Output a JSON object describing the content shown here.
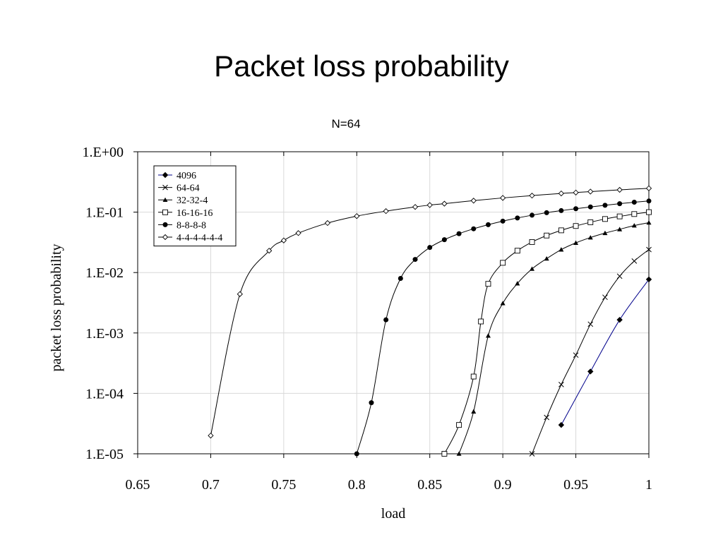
{
  "slide": {
    "title": "Packet loss probability"
  },
  "chart_data": {
    "type": "line",
    "title": "N=64",
    "xlabel": "load",
    "ylabel": "packet loss probability",
    "xlim": [
      0.65,
      1
    ],
    "x_ticks": [
      "0.65",
      "0.7",
      "0.75",
      "0.8",
      "0.85",
      "0.9",
      "0.95",
      "1"
    ],
    "y_log": true,
    "ylim": [
      1e-05,
      1
    ],
    "y_ticks": [
      "1.E+00",
      "1.E-01",
      "1.E-02",
      "1.E-03",
      "1.E-04",
      "1.E-05"
    ],
    "grid": true,
    "legend_position": "top-left",
    "series": [
      {
        "name": "4096",
        "marker": "diamond-filled",
        "color": "#00008b",
        "x": [
          0.94,
          0.96,
          0.98,
          1.0
        ],
        "y": [
          3e-05,
          0.00023,
          0.00165,
          0.0077
        ]
      },
      {
        "name": "64-64",
        "marker": "x",
        "color": "#000000",
        "x": [
          0.92,
          0.93,
          0.94,
          0.95,
          0.96,
          0.97,
          0.98,
          0.99,
          1.0
        ],
        "y": [
          1e-05,
          4e-05,
          0.00014,
          0.00043,
          0.0014,
          0.0039,
          0.0087,
          0.0155,
          0.024
        ]
      },
      {
        "name": "32-32-4",
        "marker": "triangle-filled",
        "color": "#000000",
        "x": [
          0.87,
          0.88,
          0.89,
          0.9,
          0.91,
          0.92,
          0.93,
          0.94,
          0.95,
          0.96,
          0.97,
          0.98,
          0.99,
          1.0
        ],
        "y": [
          1e-05,
          5e-05,
          0.0009,
          0.0031,
          0.0066,
          0.0115,
          0.017,
          0.024,
          0.031,
          0.038,
          0.045,
          0.052,
          0.06,
          0.067
        ]
      },
      {
        "name": "16-16-16",
        "marker": "square-open",
        "color": "#000000",
        "x": [
          0.86,
          0.87,
          0.88,
          0.885,
          0.89,
          0.9,
          0.91,
          0.92,
          0.93,
          0.94,
          0.95,
          0.96,
          0.97,
          0.98,
          0.99,
          1.0
        ],
        "y": [
          1e-05,
          3e-05,
          0.00019,
          0.00155,
          0.0065,
          0.0145,
          0.023,
          0.032,
          0.041,
          0.05,
          0.059,
          0.068,
          0.077,
          0.085,
          0.093,
          0.1
        ]
      },
      {
        "name": "8-8-8-8",
        "marker": "circle-filled",
        "color": "#000000",
        "x": [
          0.8,
          0.81,
          0.82,
          0.83,
          0.84,
          0.85,
          0.86,
          0.87,
          0.88,
          0.89,
          0.9,
          0.91,
          0.92,
          0.93,
          0.94,
          0.95,
          0.96,
          0.97,
          0.98,
          0.99,
          1.0
        ],
        "y": [
          1e-05,
          7e-05,
          0.00165,
          0.008,
          0.0165,
          0.026,
          0.035,
          0.044,
          0.053,
          0.062,
          0.071,
          0.08,
          0.089,
          0.098,
          0.106,
          0.114,
          0.122,
          0.13,
          0.138,
          0.146,
          0.153
        ]
      },
      {
        "name": "4-4-4-4-4-4",
        "marker": "diamond-open",
        "color": "#000000",
        "x": [
          0.7,
          0.72,
          0.74,
          0.75,
          0.76,
          0.78,
          0.8,
          0.82,
          0.84,
          0.85,
          0.86,
          0.88,
          0.9,
          0.92,
          0.94,
          0.95,
          0.96,
          0.98,
          1.0
        ],
        "y": [
          2e-05,
          0.0044,
          0.023,
          0.034,
          0.045,
          0.066,
          0.086,
          0.104,
          0.122,
          0.131,
          0.138,
          0.155,
          0.172,
          0.188,
          0.204,
          0.211,
          0.219,
          0.234,
          0.248
        ]
      }
    ]
  }
}
